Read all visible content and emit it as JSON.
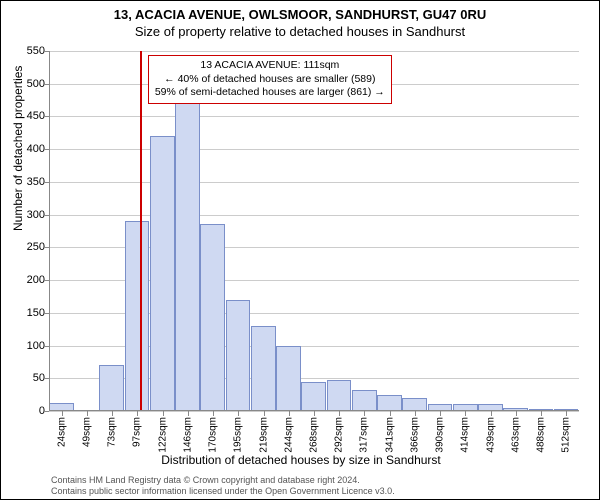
{
  "header": {
    "line1": "13, ACACIA AVENUE, OWLSMOOR, SANDHURST, GU47 0RU",
    "line2": "Size of property relative to detached houses in Sandhurst"
  },
  "chart": {
    "type": "histogram",
    "ylabel": "Number of detached properties",
    "xlabel": "Distribution of detached houses by size in Sandhurst",
    "ylim": [
      0,
      550
    ],
    "yticks": [
      0,
      50,
      100,
      150,
      200,
      250,
      300,
      350,
      400,
      450,
      500,
      550
    ],
    "xticks": [
      "24sqm",
      "49sqm",
      "73sqm",
      "97sqm",
      "122sqm",
      "146sqm",
      "170sqm",
      "195sqm",
      "219sqm",
      "244sqm",
      "268sqm",
      "292sqm",
      "317sqm",
      "341sqm",
      "366sqm",
      "390sqm",
      "414sqm",
      "439sqm",
      "463sqm",
      "488sqm",
      "512sqm"
    ],
    "bar_values": [
      12,
      0,
      70,
      290,
      420,
      500,
      285,
      170,
      130,
      100,
      45,
      48,
      32,
      25,
      20,
      10,
      10,
      10,
      5,
      3,
      3
    ],
    "bar_fill_color": "#cfd9f2",
    "bar_border_color": "#7a8fc9",
    "grid_color": "#cccccc",
    "background_color": "#ffffff",
    "marker_x_index": 3.6,
    "marker_color": "#cc0000",
    "annotation": {
      "line1": "13 ACACIA AVENUE: 111sqm",
      "line2": "← 40% of detached houses are smaller (589)",
      "line3": "59% of semi-detached houses are larger (861) →",
      "border_color": "#cc0000"
    },
    "title_fontsize": 13,
    "label_fontsize": 12,
    "tick_fontsize": 11
  },
  "footnote": {
    "line1": "Contains HM Land Registry data © Crown copyright and database right 2024.",
    "line2": "Contains public sector information licensed under the Open Government Licence v3.0."
  }
}
